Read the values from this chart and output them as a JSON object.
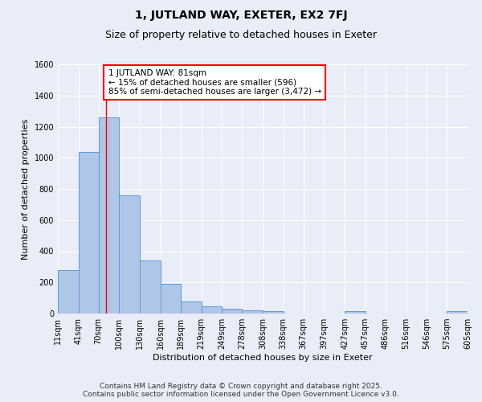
{
  "title": "1, JUTLAND WAY, EXETER, EX2 7FJ",
  "subtitle": "Size of property relative to detached houses in Exeter",
  "xlabel": "Distribution of detached houses by size in Exeter",
  "ylabel": "Number of detached properties",
  "bin_labels": [
    "11sqm",
    "41sqm",
    "70sqm",
    "100sqm",
    "130sqm",
    "160sqm",
    "189sqm",
    "219sqm",
    "249sqm",
    "278sqm",
    "308sqm",
    "338sqm",
    "367sqm",
    "397sqm",
    "427sqm",
    "457sqm",
    "486sqm",
    "516sqm",
    "546sqm",
    "575sqm",
    "605sqm"
  ],
  "bin_edges": [
    11,
    41,
    70,
    100,
    130,
    160,
    189,
    219,
    249,
    278,
    308,
    338,
    367,
    397,
    427,
    457,
    486,
    516,
    546,
    575,
    605
  ],
  "bar_heights": [
    280,
    1040,
    1260,
    760,
    340,
    190,
    80,
    45,
    30,
    20,
    15,
    0,
    0,
    0,
    15,
    0,
    0,
    0,
    0,
    15
  ],
  "bar_color": "#aec6e8",
  "bar_edge_color": "#5b9bd5",
  "red_line_x": 81,
  "annotation_text": "1 JUTLAND WAY: 81sqm\n← 15% of detached houses are smaller (596)\n85% of semi-detached houses are larger (3,472) →",
  "annotation_border_color": "red",
  "ylim": [
    0,
    1600
  ],
  "yticks": [
    0,
    200,
    400,
    600,
    800,
    1000,
    1200,
    1400,
    1600
  ],
  "background_color": "#e8edf8",
  "grid_color": "white",
  "footer_line1": "Contains HM Land Registry data © Crown copyright and database right 2025.",
  "footer_line2": "Contains public sector information licensed under the Open Government Licence v3.0.",
  "title_fontsize": 10,
  "subtitle_fontsize": 9,
  "axis_label_fontsize": 8,
  "tick_fontsize": 7,
  "annotation_fontsize": 7.5,
  "footer_fontsize": 6.5
}
